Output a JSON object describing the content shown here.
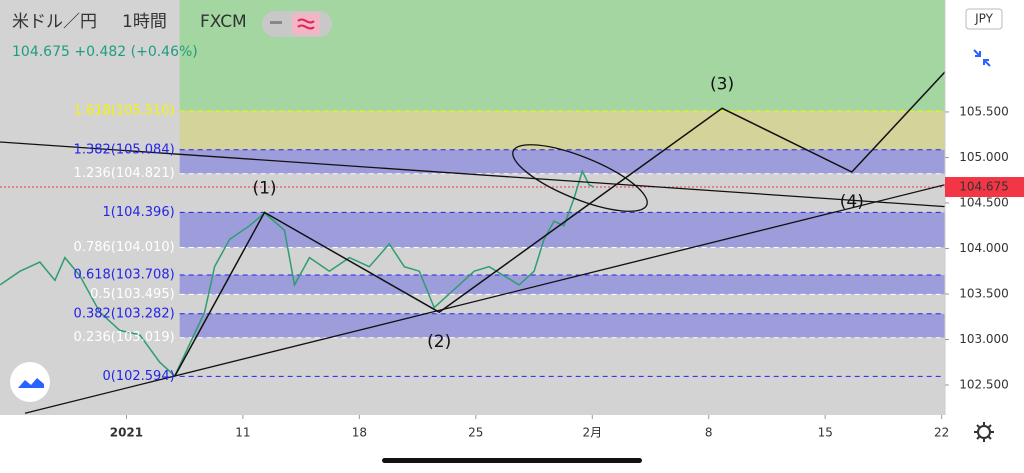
{
  "header": {
    "symbol": "米ドル／円",
    "interval": "1時間",
    "source": "FXCM",
    "price": "104.675",
    "change": "+0.482",
    "change_pct": "(+0.46%)"
  },
  "currency": "JPY",
  "chart_data": {
    "type": "line",
    "color": "#2e9e6e",
    "x": [
      -3.6,
      -2.4,
      -1.2,
      -0.3,
      0.3,
      1.2,
      2.4,
      3.6,
      4.8,
      6.0,
      6.9,
      7.8,
      8.7,
      9.3,
      10.2,
      11.4,
      12.3,
      13.5,
      14.1,
      15.0,
      16.2,
      17.4,
      18.6,
      19.8,
      20.7,
      21.6,
      22.5,
      23.1,
      24.0,
      24.9,
      25.8,
      26.7,
      27.6,
      28.5,
      29.1,
      29.7,
      30.3,
      30.9,
      31.4,
      31.8,
      32.1
    ],
    "values": [
      103.6,
      103.75,
      103.85,
      103.65,
      103.9,
      103.7,
      103.3,
      103.1,
      103.05,
      102.75,
      102.6,
      102.95,
      103.3,
      103.8,
      104.1,
      104.25,
      104.39,
      104.2,
      103.6,
      103.9,
      103.75,
      103.9,
      103.8,
      104.05,
      103.8,
      103.75,
      103.35,
      103.45,
      103.6,
      103.75,
      103.8,
      103.7,
      103.6,
      103.75,
      104.1,
      104.3,
      104.25,
      104.55,
      104.85,
      104.7,
      104.675
    ],
    "xlim": [
      -3.6,
      53.2
    ],
    "ylim": [
      102.17,
      106.73
    ],
    "xticks": [
      {
        "value": 4,
        "label": "2021"
      },
      11,
      18,
      25,
      {
        "value": 32,
        "label": "2月"
      },
      {
        "value": 39,
        "label": "8"
      },
      {
        "value": 46,
        "label": "15"
      },
      {
        "value": 53,
        "label": "22"
      }
    ],
    "yticks": [
      {
        "value": 102.5,
        "label": "102.500"
      },
      {
        "value": 103,
        "label": "103.000"
      },
      {
        "value": 103.5,
        "label": "103.500"
      },
      {
        "value": 104,
        "label": "104.000"
      },
      {
        "value": 104.5,
        "label": "104.500"
      },
      {
        "value": 105,
        "label": "105.000"
      },
      {
        "value": 105.5,
        "label": "105.500"
      }
    ],
    "current_price": {
      "value": 104.675,
      "label": "104.675",
      "color": "#f23645"
    },
    "fib": {
      "anchor_x": 7.2,
      "top_color": "#a3d6a0",
      "levels": [
        {
          "label": "1.618(105.510)",
          "value": 105.51,
          "color": "#f5f500"
        },
        {
          "label": "1.382(105.084)",
          "value": 105.084,
          "color": "#2424e8"
        },
        {
          "label": "1.236(104.821)",
          "value": 104.821,
          "color": "#ffffff"
        },
        {
          "label": "1(104.396)",
          "value": 104.396,
          "color": "#2424e8"
        },
        {
          "label": "0.786(104.010)",
          "value": 104.01,
          "color": "#ffffff"
        },
        {
          "label": "0.618(103.708)",
          "value": 103.708,
          "color": "#2424e8"
        },
        {
          "label": "0.5(103.495)",
          "value": 103.495,
          "color": "#ffffff"
        },
        {
          "label": "0.382(103.282)",
          "value": 103.282,
          "color": "#2424e8"
        },
        {
          "label": "0.236(103.019)",
          "value": 103.019,
          "color": "#ffffff"
        },
        {
          "label": "0(102.594)",
          "value": 102.594,
          "color": "#2424e8"
        }
      ],
      "band_colors": [
        "#d4d49a",
        "#9d9ddc",
        "#d3d3d3",
        "#9d9ddc",
        "#d3d3d3",
        "#9d9ddc",
        "#d3d3d3",
        "#9d9ddc",
        "#d3d3d3"
      ]
    },
    "waves": {
      "x": [
        6.9,
        12.3,
        22.8,
        39.8,
        47.6,
        53.2
      ],
      "values": [
        102.594,
        104.396,
        103.3,
        105.54,
        104.84,
        105.94
      ],
      "labels": [
        "(1)",
        "(2)",
        "(3)",
        "(4)"
      ]
    },
    "trendlines": [
      {
        "x": [
          -3.6,
          53.2
        ],
        "values": [
          105.17,
          104.46
        ]
      },
      {
        "x": [
          -2.1,
          53.2
        ],
        "values": [
          102.19,
          104.7
        ]
      }
    ]
  }
}
